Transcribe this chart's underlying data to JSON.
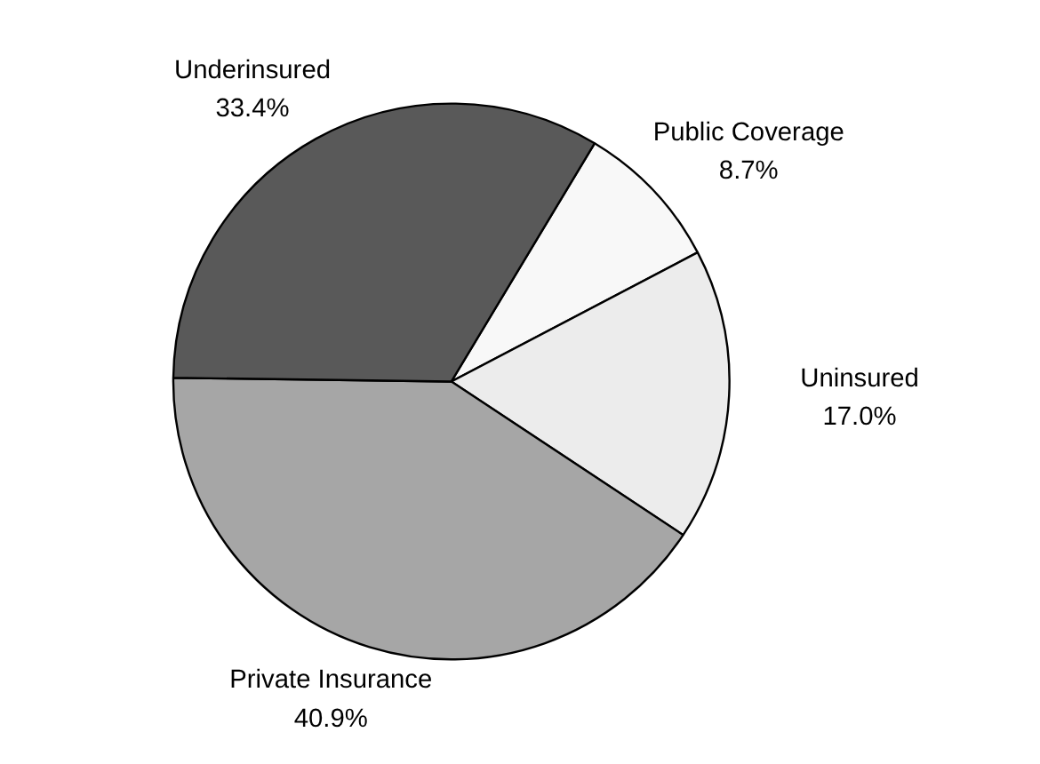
{
  "chart_data": {
    "type": "pie",
    "categories": [
      "Public Coverage",
      "Uninsured",
      "Private Insurance",
      "Underinsured"
    ],
    "values": [
      8.7,
      17.0,
      40.9,
      33.4
    ],
    "colors": [
      "#f8f8f8",
      "#ececec",
      "#a6a6a6",
      "#595959"
    ],
    "value_labels": [
      "8.7%",
      "17.0%",
      "40.9%",
      "33.4%"
    ]
  }
}
